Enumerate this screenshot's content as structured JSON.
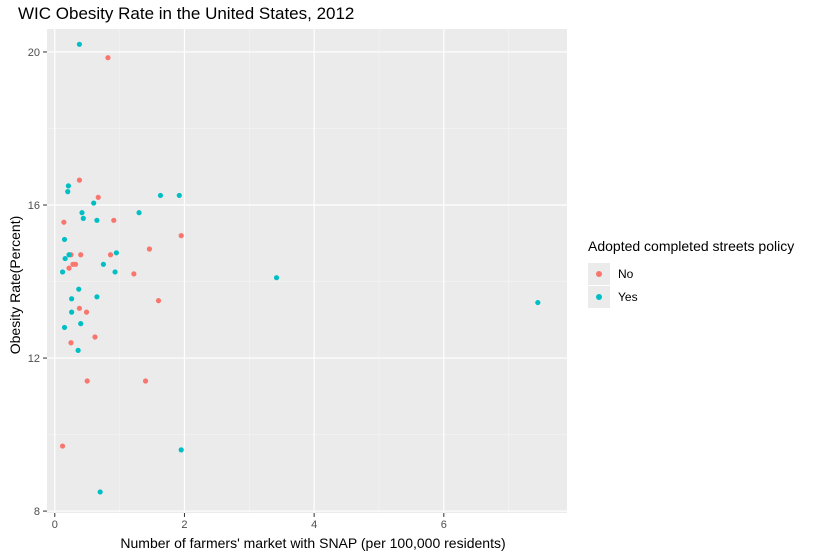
{
  "chart_data": {
    "type": "scatter",
    "title": "WIC Obesity Rate in the United States, 2012",
    "xlabel": "Number of farmers' market with SNAP (per 100,000 residents)",
    "ylabel": "Obesity Rate(Percent)",
    "xlim": [
      -0.12,
      7.9
    ],
    "ylim": [
      7.95,
      20.6
    ],
    "x_ticks": [
      0,
      2,
      4,
      6
    ],
    "y_ticks": [
      8,
      12,
      16,
      20
    ],
    "grid": true,
    "legend": {
      "title": "Adopted completed streets policy",
      "position": "right"
    },
    "series": [
      {
        "name": "No",
        "color": "#F8766D",
        "points": [
          [
            0.82,
            19.85
          ],
          [
            0.38,
            16.65
          ],
          [
            0.67,
            16.2
          ],
          [
            0.14,
            15.55
          ],
          [
            0.91,
            15.6
          ],
          [
            1.95,
            15.2
          ],
          [
            1.46,
            14.85
          ],
          [
            0.25,
            14.7
          ],
          [
            0.4,
            14.7
          ],
          [
            0.86,
            14.7
          ],
          [
            0.28,
            14.45
          ],
          [
            0.32,
            14.45
          ],
          [
            0.22,
            14.35
          ],
          [
            1.22,
            14.2
          ],
          [
            1.6,
            13.5
          ],
          [
            0.38,
            13.3
          ],
          [
            0.49,
            13.2
          ],
          [
            0.62,
            12.55
          ],
          [
            0.25,
            12.4
          ],
          [
            0.5,
            11.4
          ],
          [
            1.4,
            11.4
          ],
          [
            0.12,
            9.7
          ]
        ]
      },
      {
        "name": "Yes",
        "color": "#00BFC4",
        "points": [
          [
            0.38,
            20.2
          ],
          [
            0.21,
            16.5
          ],
          [
            0.2,
            16.35
          ],
          [
            1.63,
            16.25
          ],
          [
            1.92,
            16.25
          ],
          [
            0.6,
            16.05
          ],
          [
            0.42,
            15.8
          ],
          [
            1.3,
            15.8
          ],
          [
            0.44,
            15.65
          ],
          [
            0.65,
            15.6
          ],
          [
            0.15,
            15.1
          ],
          [
            0.95,
            14.75
          ],
          [
            0.22,
            14.7
          ],
          [
            0.16,
            14.6
          ],
          [
            0.75,
            14.45
          ],
          [
            0.93,
            14.25
          ],
          [
            0.12,
            14.25
          ],
          [
            3.42,
            14.1
          ],
          [
            0.37,
            13.8
          ],
          [
            0.65,
            13.6
          ],
          [
            0.26,
            13.55
          ],
          [
            7.45,
            13.45
          ],
          [
            0.26,
            13.2
          ],
          [
            0.4,
            12.9
          ],
          [
            0.15,
            12.8
          ],
          [
            0.36,
            12.2
          ],
          [
            1.95,
            9.6
          ],
          [
            0.7,
            8.5
          ]
        ]
      }
    ]
  }
}
